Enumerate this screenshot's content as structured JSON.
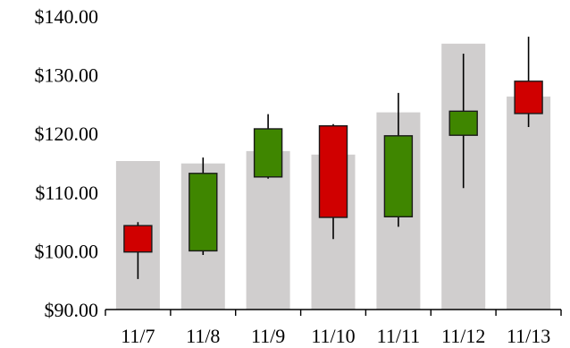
{
  "chart_data": {
    "type": "candlestick",
    "title": "",
    "xlabel": "",
    "ylabel": "",
    "categories": [
      "11/7",
      "11/8",
      "11/9",
      "11/10",
      "11/11",
      "11/12",
      "11/13"
    ],
    "ylim": [
      90,
      140
    ],
    "yticks": [
      90,
      100,
      110,
      120,
      130,
      140
    ],
    "ytick_labels": [
      "$90.00",
      "$100.00",
      "$110.00",
      "$120.00",
      "$130.00",
      "$140.00"
    ],
    "grid": false,
    "legend": "none",
    "series": [
      {
        "type": "bar",
        "values": [
          115.3,
          114.9,
          117.0,
          116.4,
          123.6,
          135.3,
          126.3
        ]
      },
      {
        "type": "ohlc",
        "open": [
          104.3,
          100.0,
          112.6,
          121.3,
          105.8,
          119.7,
          128.9
        ],
        "high": [
          104.9,
          115.9,
          123.3,
          121.6,
          126.9,
          133.6,
          136.5
        ],
        "low": [
          95.2,
          99.3,
          112.3,
          102.0,
          104.1,
          110.7,
          121.1
        ],
        "close": [
          99.8,
          113.2,
          120.8,
          105.7,
          119.6,
          123.8,
          123.4
        ]
      }
    ],
    "colors": {
      "bar": "#d0cece",
      "up": "#3f8600",
      "down": "#d00000",
      "wick": "#000000",
      "axis": "#000000"
    }
  }
}
